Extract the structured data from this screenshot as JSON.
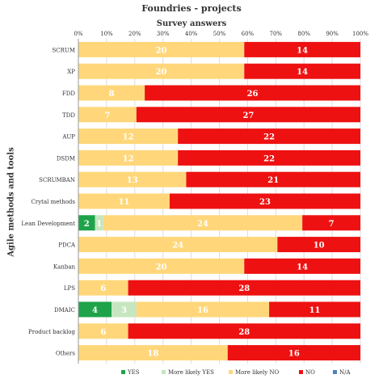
{
  "chart_data": {
    "type": "bar",
    "orientation": "horizontal",
    "stacked": "percent",
    "title": "Foundries - projects",
    "xlabel": "Survey answers",
    "ylabel": "Agile methods and tools",
    "xticks": [
      "0%",
      "10%",
      "20%",
      "30%",
      "40%",
      "50%",
      "60%",
      "70%",
      "80%",
      "90%",
      "100%"
    ],
    "categories": [
      "SCRUM",
      "XP",
      "FDD",
      "TDD",
      "AUP",
      "DSDM",
      "SCRUMBAN",
      "Crytal methods",
      "Lean Development",
      "PDCA",
      "Kanban",
      "LPS",
      "DMAIC",
      "Product backlog",
      "Others"
    ],
    "series": [
      {
        "name": "YES",
        "color": "#1ea34a",
        "label_color": "#ffffff",
        "values": [
          0,
          0,
          0,
          0,
          0,
          0,
          0,
          0,
          2,
          0,
          0,
          0,
          4,
          0,
          0
        ]
      },
      {
        "name": "More likely YES",
        "color": "#c6e6c0",
        "label_color": "#ffffff",
        "values": [
          0,
          0,
          0,
          0,
          0,
          0,
          0,
          0,
          1,
          0,
          0,
          0,
          3,
          0,
          0
        ]
      },
      {
        "name": "More likely NO",
        "color": "#ffd77a",
        "label_color": "#ffffff",
        "values": [
          20,
          20,
          8,
          7,
          12,
          12,
          13,
          11,
          24,
          24,
          20,
          6,
          16,
          6,
          18
        ]
      },
      {
        "name": "NO",
        "color": "#ee1111",
        "label_color": "#ffffff",
        "values": [
          14,
          14,
          26,
          27,
          22,
          22,
          21,
          23,
          7,
          10,
          14,
          28,
          11,
          28,
          16
        ]
      },
      {
        "name": "N/A",
        "color": "#4f81bd",
        "label_color": "#ffffff",
        "values": [
          0,
          0,
          0,
          0,
          0,
          0,
          0,
          0,
          0,
          0,
          0,
          0,
          0,
          0,
          0
        ]
      }
    ],
    "legend_position": "bottom",
    "grid": true
  }
}
